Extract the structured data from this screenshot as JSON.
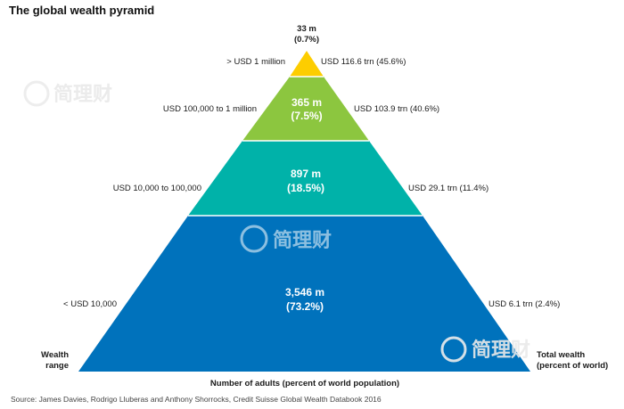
{
  "title": "The global wealth pyramid",
  "colors": {
    "tier1": "#fdcd00",
    "tier2": "#8cc63f",
    "tier3": "#00b2a9",
    "tier4": "#0072bc"
  },
  "pyramid": [
    {
      "adults": "33 m",
      "share": "(0.7%)",
      "wealth_range": "> USD 1 million",
      "total_wealth": "USD 116.6 trn (45.6%)"
    },
    {
      "adults": "365 m",
      "share": "(7.5%)",
      "wealth_range": "USD 100,000 to 1 million",
      "total_wealth": "USD 103.9 trn (40.6%)"
    },
    {
      "adults": "897 m",
      "share": "(18.5%)",
      "wealth_range": "USD 10,000 to 100,000",
      "total_wealth": "USD 29.1 trn (11.4%)"
    },
    {
      "adults": "3,546 m",
      "share": "(73.2%)",
      "wealth_range": "< USD 10,000",
      "total_wealth": "USD 6.1 trn (2.4%)"
    }
  ],
  "left_axis": {
    "line1": "Wealth",
    "line2": "range"
  },
  "right_axis": {
    "line1": "Total wealth",
    "line2": "(percent of world)"
  },
  "bottom_label": "Number of adults (percent of world population)",
  "source": "Source: James Davies, Rodrigo Lluberas and Anthony Shorrocks, Credit Suisse Global Wealth Databook 2016",
  "watermark": {
    "text": "简理财",
    "icon": "rocket-circle-icon"
  }
}
